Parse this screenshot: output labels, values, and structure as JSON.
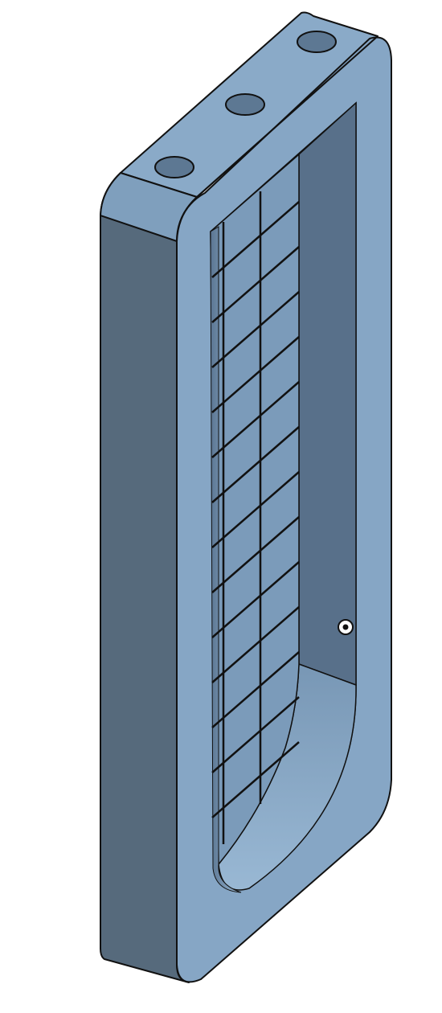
{
  "viewport": {
    "background": "#ffffff"
  },
  "model": {
    "part": "mold-frame",
    "view": "isometric",
    "colors": {
      "face_light": "#8aaac8",
      "face_mid": "#7f9fbd",
      "face_side": "#566a7c",
      "face_recess": "#6f8dab",
      "face_recess_wall": "#58708a",
      "hole_fill": "#5d7893",
      "edge": "#111111"
    },
    "mounting_holes": 3,
    "grid": {
      "vertical_lines": 3,
      "horizontal_lines": 13
    },
    "origin_marker": "origin-point-icon"
  }
}
